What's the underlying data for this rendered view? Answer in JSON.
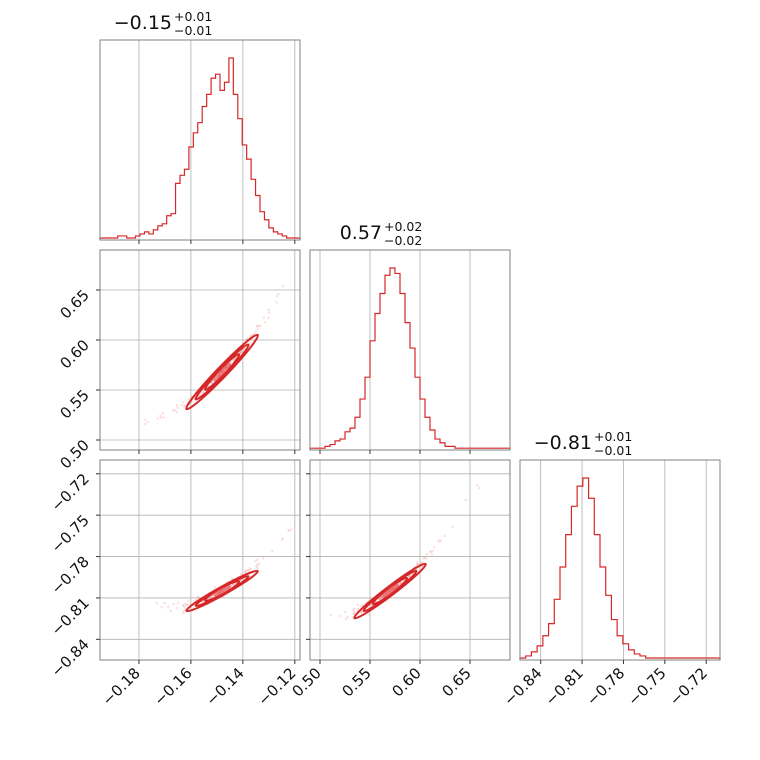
{
  "chart_data": {
    "type": "corner",
    "color": "#d62728",
    "parameters": [
      {
        "median": -0.15,
        "title": "−0.15",
        "title_plus": "+0.01",
        "title_minus": "−0.01",
        "range": [
          -0.195,
          -0.118
        ],
        "ticks": [
          -0.18,
          -0.16,
          -0.14,
          -0.12
        ],
        "tick_labels": [
          "−0.18",
          "−0.16",
          "−0.14",
          "−0.12"
        ],
        "hist_range": [
          -0.195,
          -0.118
        ],
        "hist_counts": [
          1,
          1,
          1,
          1,
          2,
          2,
          1,
          1,
          2,
          3,
          4,
          3,
          5,
          7,
          8,
          12,
          13,
          28,
          32,
          35,
          46,
          53,
          58,
          66,
          72,
          80,
          82,
          74,
          78,
          90,
          72,
          60,
          47,
          40,
          30,
          22,
          14,
          10,
          6,
          4,
          3,
          2,
          1,
          1,
          1
        ]
      },
      {
        "median": 0.57,
        "title": "0.57",
        "title_plus": "+0.02",
        "title_minus": "−0.02",
        "range": [
          0.49,
          0.69
        ],
        "ticks": [
          0.5,
          0.55,
          0.6,
          0.65
        ],
        "tick_labels": [
          "0.50",
          "0.55",
          "0.60",
          "0.65"
        ],
        "hist_range": [
          0.49,
          0.69
        ],
        "hist_counts": [
          1,
          1,
          1,
          2,
          3,
          5,
          6,
          10,
          12,
          18,
          28,
          40,
          60,
          75,
          86,
          96,
          100,
          97,
          86,
          70,
          56,
          40,
          28,
          18,
          11,
          6,
          4,
          2,
          2,
          1,
          1,
          1,
          1,
          1,
          1,
          1,
          1,
          1,
          1,
          1
        ]
      },
      {
        "median": -0.81,
        "title": "−0.81",
        "title_plus": "+0.01",
        "title_minus": "−0.01",
        "range": [
          -0.855,
          -0.71
        ],
        "ticks": [
          -0.84,
          -0.81,
          -0.78,
          -0.75,
          -0.72
        ],
        "tick_labels": [
          "−0.84",
          "−0.81",
          "−0.78",
          "−0.75",
          "−0.72"
        ],
        "hist_range": [
          -0.855,
          -0.71
        ],
        "hist_counts": [
          1,
          2,
          4,
          7,
          12,
          18,
          30,
          46,
          62,
          76,
          86,
          90,
          80,
          62,
          46,
          32,
          20,
          12,
          8,
          5,
          3,
          2,
          1,
          1,
          1,
          1,
          1,
          1,
          1,
          1,
          1,
          1,
          1,
          1,
          1
        ]
      }
    ],
    "pairs": [
      {
        "x_param": 0,
        "y_param": 1,
        "slope": 2.7,
        "center": [
          -0.148,
          0.568
        ]
      },
      {
        "x_param": 0,
        "y_param": 2,
        "slope": 1.05,
        "center": [
          -0.148,
          -0.805
        ]
      },
      {
        "x_param": 1,
        "y_param": 2,
        "slope": 0.55,
        "center": [
          0.57,
          -0.805
        ]
      }
    ],
    "grid": true
  }
}
